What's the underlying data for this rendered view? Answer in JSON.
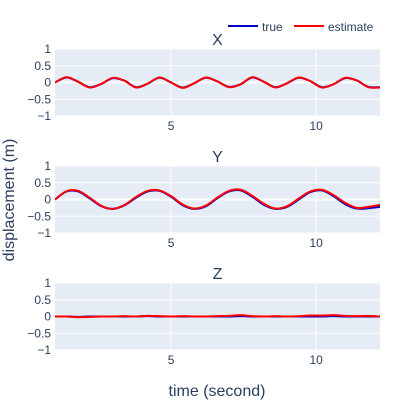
{
  "figure": {
    "ylabel": "displacement (m)",
    "xlabel": "time (second)",
    "legend": {
      "placement": "top-right",
      "items": [
        {
          "label": "true",
          "color": "#0000cc"
        },
        {
          "label": "estimate",
          "color": "#ff0000"
        }
      ]
    },
    "colors": {
      "plot_bg": "#e5ecf6",
      "grid": "#ffffff",
      "axis_text": "#2a3f5f"
    }
  },
  "chart_data": [
    {
      "type": "line",
      "title": "X",
      "xlim": [
        1,
        12.2
      ],
      "ylim": [
        -1,
        1
      ],
      "xticks": [
        5,
        10
      ],
      "yticks": [
        1,
        0.5,
        0,
        -0.5,
        -1
      ],
      "ytick_labels": [
        "1",
        "0.5",
        "0",
        "−0.5",
        "−1"
      ],
      "grid": true,
      "x": [
        1.0,
        1.4,
        1.8,
        2.2,
        2.6,
        3.0,
        3.4,
        3.8,
        4.2,
        4.6,
        5.0,
        5.4,
        5.8,
        6.2,
        6.6,
        7.0,
        7.4,
        7.8,
        8.2,
        8.6,
        9.0,
        9.4,
        9.8,
        10.2,
        10.6,
        11.0,
        11.4,
        11.8,
        12.2
      ],
      "series": [
        {
          "name": "true",
          "values": [
            0.0,
            0.15,
            0.02,
            -0.14,
            -0.04,
            0.13,
            0.05,
            -0.14,
            -0.03,
            0.14,
            0.0,
            -0.15,
            -0.02,
            0.14,
            0.03,
            -0.13,
            -0.05,
            0.15,
            0.02,
            -0.14,
            -0.02,
            0.14,
            0.04,
            -0.14,
            -0.05,
            0.13,
            0.06,
            -0.13,
            -0.14
          ]
        },
        {
          "name": "estimate",
          "values": [
            0.0,
            0.16,
            0.02,
            -0.15,
            -0.04,
            0.14,
            0.05,
            -0.15,
            -0.03,
            0.15,
            0.0,
            -0.16,
            -0.02,
            0.15,
            0.03,
            -0.14,
            -0.05,
            0.16,
            0.02,
            -0.15,
            -0.02,
            0.15,
            0.04,
            -0.15,
            -0.05,
            0.14,
            0.06,
            -0.14,
            -0.15
          ]
        }
      ]
    },
    {
      "type": "line",
      "title": "Y",
      "xlim": [
        1,
        12.2
      ],
      "ylim": [
        -1,
        1
      ],
      "xticks": [
        5,
        10
      ],
      "yticks": [
        1,
        0.5,
        0,
        -0.5,
        -1
      ],
      "ytick_labels": [
        "1",
        "0.5",
        "0",
        "−0.5",
        "−1"
      ],
      "grid": true,
      "x": [
        1.0,
        1.4,
        1.8,
        2.2,
        2.6,
        3.0,
        3.4,
        3.8,
        4.2,
        4.6,
        5.0,
        5.4,
        5.8,
        6.2,
        6.6,
        7.0,
        7.4,
        7.8,
        8.2,
        8.6,
        9.0,
        9.4,
        9.8,
        10.2,
        10.6,
        11.0,
        11.4,
        11.8,
        12.2
      ],
      "series": [
        {
          "name": "true",
          "values": [
            0.0,
            0.24,
            0.24,
            0.03,
            -0.2,
            -0.28,
            -0.17,
            0.06,
            0.24,
            0.26,
            0.08,
            -0.17,
            -0.28,
            -0.2,
            0.04,
            0.24,
            0.27,
            0.08,
            -0.16,
            -0.28,
            -0.22,
            0.0,
            0.22,
            0.27,
            0.1,
            -0.14,
            -0.27,
            -0.26,
            -0.22
          ]
        },
        {
          "name": "estimate",
          "values": [
            0.0,
            0.25,
            0.26,
            0.05,
            -0.19,
            -0.28,
            -0.16,
            0.08,
            0.26,
            0.27,
            0.1,
            -0.15,
            -0.27,
            -0.18,
            0.06,
            0.26,
            0.29,
            0.11,
            -0.13,
            -0.27,
            -0.2,
            0.03,
            0.24,
            0.29,
            0.13,
            -0.1,
            -0.25,
            -0.22,
            -0.16
          ]
        }
      ]
    },
    {
      "type": "line",
      "title": "Z",
      "xlim": [
        1,
        12.2
      ],
      "ylim": [
        -1,
        1
      ],
      "xticks": [
        5,
        10
      ],
      "yticks": [
        1,
        0.5,
        0,
        -0.5,
        -1
      ],
      "ytick_labels": [
        "1",
        "0.5",
        "0",
        "−0.5",
        "−1"
      ],
      "grid": true,
      "x": [
        1.0,
        1.4,
        1.8,
        2.2,
        2.6,
        3.0,
        3.4,
        3.8,
        4.2,
        4.6,
        5.0,
        5.4,
        5.8,
        6.2,
        6.6,
        7.0,
        7.4,
        7.8,
        8.2,
        8.6,
        9.0,
        9.4,
        9.8,
        10.2,
        10.6,
        11.0,
        11.4,
        11.8,
        12.2
      ],
      "series": [
        {
          "name": "true",
          "values": [
            0.0,
            0.0,
            -0.01,
            0.0,
            0.0,
            0.0,
            0.0,
            0.0,
            0.01,
            0.0,
            0.0,
            0.0,
            0.0,
            0.0,
            0.0,
            0.0,
            0.01,
            0.0,
            0.0,
            0.0,
            0.0,
            0.0,
            0.0,
            0.0,
            0.01,
            0.0,
            0.0,
            0.0,
            0.0
          ]
        },
        {
          "name": "estimate",
          "values": [
            0.0,
            0.0,
            -0.02,
            -0.01,
            0.0,
            0.0,
            0.01,
            0.0,
            0.02,
            0.01,
            0.0,
            0.01,
            0.0,
            0.0,
            0.01,
            0.02,
            0.04,
            0.01,
            0.0,
            0.01,
            0.0,
            0.01,
            0.03,
            0.03,
            0.04,
            0.02,
            0.01,
            0.02,
            0.0
          ]
        }
      ]
    }
  ]
}
